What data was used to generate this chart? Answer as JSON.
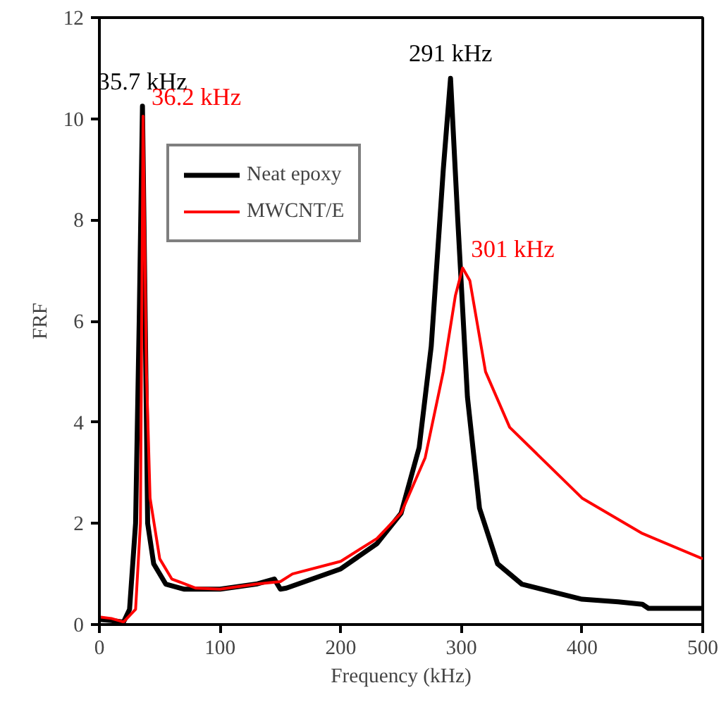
{
  "chart_data": {
    "type": "line",
    "xlabel": "Frequency (kHz)",
    "ylabel": "FRF",
    "xlim": [
      0,
      500
    ],
    "ylim": [
      0,
      12
    ],
    "xticks": [
      0,
      100,
      200,
      300,
      400,
      500
    ],
    "yticks": [
      0,
      2,
      4,
      6,
      8,
      10,
      12
    ],
    "grid": false,
    "legend": "top left",
    "line_style": "solid",
    "marker": "none",
    "series": [
      {
        "name": "Neat epoxy",
        "color": "#000000",
        "x": [
          0,
          10,
          20,
          25,
          30,
          33,
          35.7,
          38,
          40,
          45,
          55,
          70,
          100,
          130,
          145,
          150,
          155,
          200,
          230,
          250,
          265,
          275,
          285,
          291,
          297,
          305,
          315,
          330,
          350,
          400,
          430,
          450,
          455,
          500
        ],
        "values": [
          0.1,
          0.08,
          0.05,
          0.3,
          2,
          6,
          10.25,
          6,
          2,
          1.2,
          0.8,
          0.7,
          0.7,
          0.8,
          0.9,
          0.7,
          0.72,
          1.1,
          1.6,
          2.2,
          3.5,
          5.5,
          9,
          10.8,
          8,
          4.5,
          2.3,
          1.2,
          0.8,
          0.5,
          0.45,
          0.4,
          0.32,
          0.32
        ]
      },
      {
        "name": "MWCNT/E",
        "color": "#ff0000",
        "x": [
          0,
          10,
          20,
          30,
          34,
          36.2,
          39,
          42,
          50,
          60,
          80,
          100,
          130,
          150,
          160,
          200,
          230,
          250,
          270,
          285,
          295,
          301,
          307,
          320,
          340,
          370,
          400,
          450,
          500
        ],
        "values": [
          0.15,
          0.12,
          0.05,
          0.3,
          2,
          10.05,
          5,
          2.5,
          1.3,
          0.9,
          0.72,
          0.7,
          0.8,
          0.85,
          1.0,
          1.25,
          1.7,
          2.2,
          3.3,
          5.0,
          6.5,
          7.05,
          6.8,
          5,
          3.9,
          3.2,
          2.5,
          1.8,
          1.3
        ]
      }
    ],
    "annotations": [
      {
        "text": "35.7 kHz",
        "x": 35.7,
        "y": 10.25
      },
      {
        "text": "36.2 kHz",
        "x": 36.2,
        "y": 10.05
      },
      {
        "text": "291 kHz",
        "x": 291,
        "y": 10.8
      },
      {
        "text": "301 kHz",
        "x": 301,
        "y": 7.05
      }
    ]
  }
}
